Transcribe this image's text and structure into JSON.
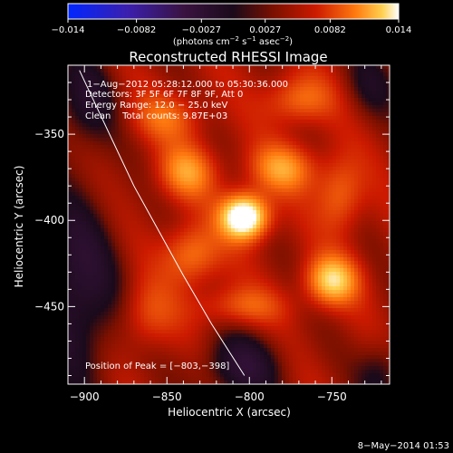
{
  "chart_data": {
    "type": "heatmap",
    "title": "Reconstructed RHESSI Image",
    "xlabel": "Heliocentric X (arcsec)",
    "ylabel": "Heliocentric Y (arcsec)",
    "xlim": [
      -910,
      -715
    ],
    "ylim": [
      -495,
      -310
    ],
    "x_ticks": [
      -900,
      -850,
      -800,
      -750
    ],
    "x_tick_labels": [
      "−900",
      "−850",
      "−800",
      "−750"
    ],
    "y_ticks": [
      -450,
      -400,
      -350
    ],
    "y_tick_labels": [
      "−450",
      "−400",
      "−350"
    ],
    "colorbar": {
      "range": [
        -0.014,
        0.014
      ],
      "ticks": [
        -0.014,
        -0.0082,
        -0.0027,
        0.0027,
        0.0082,
        0.014
      ],
      "tick_labels": [
        "−0.014",
        "−0.0082",
        "−0.0027",
        "0.0027",
        "0.0082",
        "0.014"
      ],
      "label_main": "(photons cm",
      "label_exp1": "−2",
      "label_mid": " s",
      "label_exp2": "−1",
      "label_end": " asec",
      "label_exp3": "−2",
      "label_close": ")"
    },
    "annotations": {
      "time_range": "1−Aug−2012 05:28:12.000 to 05:30:36.000",
      "detectors": "Detectors: 3F 5F 6F 7F 8F 9F, Att 0",
      "energy": "Energy Range: 12.0 − 25.0 keV",
      "clean": "Clean    Total counts: 9.87E+03",
      "peak": "Position of Peak = [−803,−398]"
    },
    "peak": {
      "x": -803,
      "y": -398
    },
    "sources": [
      {
        "x": -803,
        "y": -398,
        "amp": 0.0145,
        "sx": 10,
        "sy": 9
      },
      {
        "x": -750,
        "y": -435,
        "amp": 0.0088,
        "sx": 11,
        "sy": 10
      },
      {
        "x": -780,
        "y": -370,
        "amp": 0.0062,
        "sx": 14,
        "sy": 10
      },
      {
        "x": -838,
        "y": -372,
        "amp": 0.006,
        "sx": 12,
        "sy": 11
      },
      {
        "x": -835,
        "y": -420,
        "amp": 0.0055,
        "sx": 12,
        "sy": 12
      },
      {
        "x": -770,
        "y": -330,
        "amp": 0.005,
        "sx": 14,
        "sy": 10
      },
      {
        "x": -850,
        "y": -340,
        "amp": 0.0042,
        "sx": 15,
        "sy": 10
      },
      {
        "x": -745,
        "y": -385,
        "amp": 0.0048,
        "sx": 10,
        "sy": 15
      },
      {
        "x": -805,
        "y": -450,
        "amp": 0.004,
        "sx": 18,
        "sy": 8
      },
      {
        "x": -862,
        "y": -455,
        "amp": 0.0035,
        "sx": 12,
        "sy": 14
      }
    ],
    "limb": [
      [
        -903,
        -313
      ],
      [
        -870,
        -380
      ],
      [
        -840,
        -432
      ],
      [
        -823,
        -460
      ],
      [
        -803,
        -490
      ]
    ]
  },
  "footer": {
    "timestamp": "8−May−2014 01:53"
  }
}
